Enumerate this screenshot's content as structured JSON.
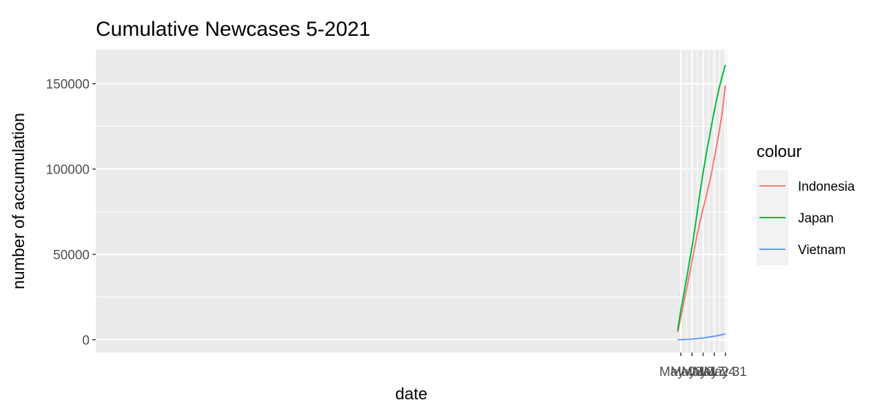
{
  "chart_data": {
    "type": "line",
    "title": "Cumulative Newcases 5-2021",
    "xlabel": "date",
    "ylabel": "number of accumulation",
    "x": [
      "2021-05-01",
      "2021-05-03",
      "2021-05-05",
      "2021-05-07",
      "2021-05-09",
      "2021-05-11",
      "2021-05-13",
      "2021-05-15",
      "2021-05-17",
      "2021-05-19",
      "2021-05-21",
      "2021-05-23",
      "2021-05-25",
      "2021-05-27",
      "2021-05-29",
      "2021-05-31"
    ],
    "x_ticks": [
      {
        "date": "2021-05-03",
        "label": "May 03"
      },
      {
        "date": "2021-05-10",
        "label": "May 10"
      },
      {
        "date": "2021-05-17",
        "label": "May 17"
      },
      {
        "date": "2021-05-24",
        "label": "May 24"
      },
      {
        "date": "2021-05-31",
        "label": "May 31"
      }
    ],
    "xlim": [
      "2020-04-30",
      "2021-06-01"
    ],
    "y_ticks": [
      0,
      50000,
      100000,
      150000
    ],
    "y_tick_labels": [
      "0",
      "50000",
      "100000",
      "150000"
    ],
    "ylim": [
      -7500,
      170000
    ],
    "grid": true,
    "legend": {
      "title": "colour",
      "position": "right"
    },
    "series": [
      {
        "name": "Indonesia",
        "color": "#F8766D",
        "values": [
          4500,
          13500,
          22500,
          31500,
          41000,
          51000,
          60500,
          69000,
          77000,
          84000,
          92000,
          101000,
          111000,
          121500,
          133000,
          149000
        ]
      },
      {
        "name": "Japan",
        "color": "#00BA38",
        "values": [
          5500,
          17500,
          27500,
          38000,
          49000,
          60000,
          73000,
          86000,
          98000,
          109000,
          119000,
          129000,
          138500,
          147000,
          154500,
          161000
        ]
      },
      {
        "name": "Vietnam",
        "color": "#619CFF",
        "values": [
          0,
          50,
          100,
          200,
          300,
          450,
          600,
          800,
          1000,
          1300,
          1600,
          1900,
          2200,
          2600,
          3000,
          3500
        ]
      }
    ]
  }
}
